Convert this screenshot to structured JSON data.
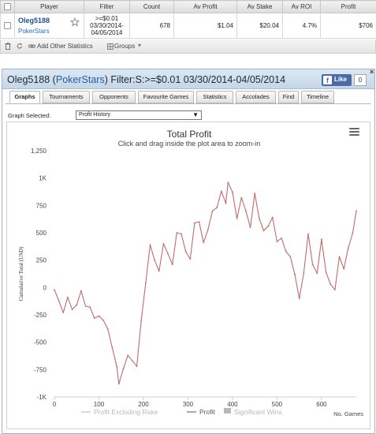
{
  "stats_table": {
    "headers": [
      "Player",
      "Filter",
      "Count",
      "Av Profit",
      "Av Stake",
      "Av ROI",
      "Profit"
    ],
    "row": {
      "player_name": "Oleg5188",
      "player_site": "PokerStars",
      "filter_line1": ">=$0.01",
      "filter_line2": "03/30/2014-",
      "filter_line3": "04/05/2014",
      "count": "678",
      "av_profit": "$1.04",
      "av_stake": "$20.04",
      "av_roi": "4.7%",
      "profit": "$706"
    }
  },
  "stats_toolbar": {
    "add_other_statistics": "Add Other Statistics",
    "groups": "Groups"
  },
  "panel": {
    "title_prefix": "Oleg5188 (",
    "title_site": "PokerStars",
    "title_suffix": ") Filter:S:>=$0.01 03/30/2014-04/05/2014",
    "fb_like": "Like",
    "fb_count": "0",
    "close": "×"
  },
  "tabs": [
    "Graphs",
    "Tournaments",
    "Opponents",
    "Favourite Games",
    "Statistics",
    "Accolades",
    "Find",
    "Timeline"
  ],
  "active_tab": "Graphs",
  "graph_select": {
    "label": "Graph Selected:",
    "value": "Profit History"
  },
  "colors": {
    "profit_line": "#c26b6b",
    "excl_rake_line": "#d8b6b6",
    "axis_text": "#444444",
    "legend_inactive": "#b8b8b8",
    "legend_active": "#555555"
  },
  "chart_data": {
    "type": "line",
    "title": "Total Profit",
    "subtitle": "Click and drag inside the plot area to zoom-in",
    "ylabel": "Cumulative Total (USD)",
    "xlabel": "No. Games",
    "xlim": [
      0,
      678
    ],
    "ylim": [
      -1000,
      1250
    ],
    "x_ticks": [
      0,
      100,
      200,
      300,
      400,
      500,
      600
    ],
    "x_tick_labels": [
      "0",
      "100",
      "200",
      "300",
      "400",
      "500",
      "600"
    ],
    "y_ticks": [
      -1000,
      -750,
      -500,
      -250,
      0,
      250,
      500,
      750,
      1000,
      1250
    ],
    "y_tick_labels": [
      "-1K",
      "-750",
      "-500",
      "-250",
      "0",
      "250",
      "500",
      "750",
      "1K",
      "1,250"
    ],
    "grid": false,
    "legend_position": "bottom-center",
    "legend": [
      "Profit Excluding Rake",
      "Profit",
      "Significant Wins"
    ],
    "series": [
      {
        "name": "Profit",
        "x": [
          0,
          10,
          20,
          30,
          40,
          50,
          60,
          70,
          80,
          90,
          100,
          110,
          120,
          130,
          140,
          145,
          155,
          165,
          175,
          185,
          195,
          205,
          215,
          225,
          235,
          245,
          255,
          265,
          275,
          285,
          295,
          305,
          315,
          325,
          335,
          345,
          355,
          365,
          375,
          385,
          390,
          400,
          410,
          420,
          430,
          440,
          450,
          460,
          470,
          480,
          490,
          500,
          510,
          520,
          530,
          540,
          550,
          560,
          570,
          580,
          590,
          600,
          610,
          620,
          630,
          640,
          650,
          660,
          670,
          678
        ],
        "y": [
          -20,
          -120,
          -230,
          -90,
          -200,
          -160,
          -30,
          -170,
          -180,
          -280,
          -260,
          -300,
          -380,
          -550,
          -720,
          -880,
          -740,
          -620,
          -670,
          -720,
          -300,
          40,
          390,
          250,
          150,
          400,
          310,
          210,
          500,
          490,
          330,
          260,
          590,
          600,
          410,
          530,
          700,
          730,
          880,
          770,
          960,
          870,
          630,
          820,
          700,
          550,
          860,
          630,
          520,
          560,
          640,
          420,
          450,
          330,
          280,
          120,
          -100,
          130,
          490,
          210,
          130,
          440,
          140,
          30,
          -20,
          280,
          170,
          360,
          500,
          700
        ]
      }
    ]
  }
}
